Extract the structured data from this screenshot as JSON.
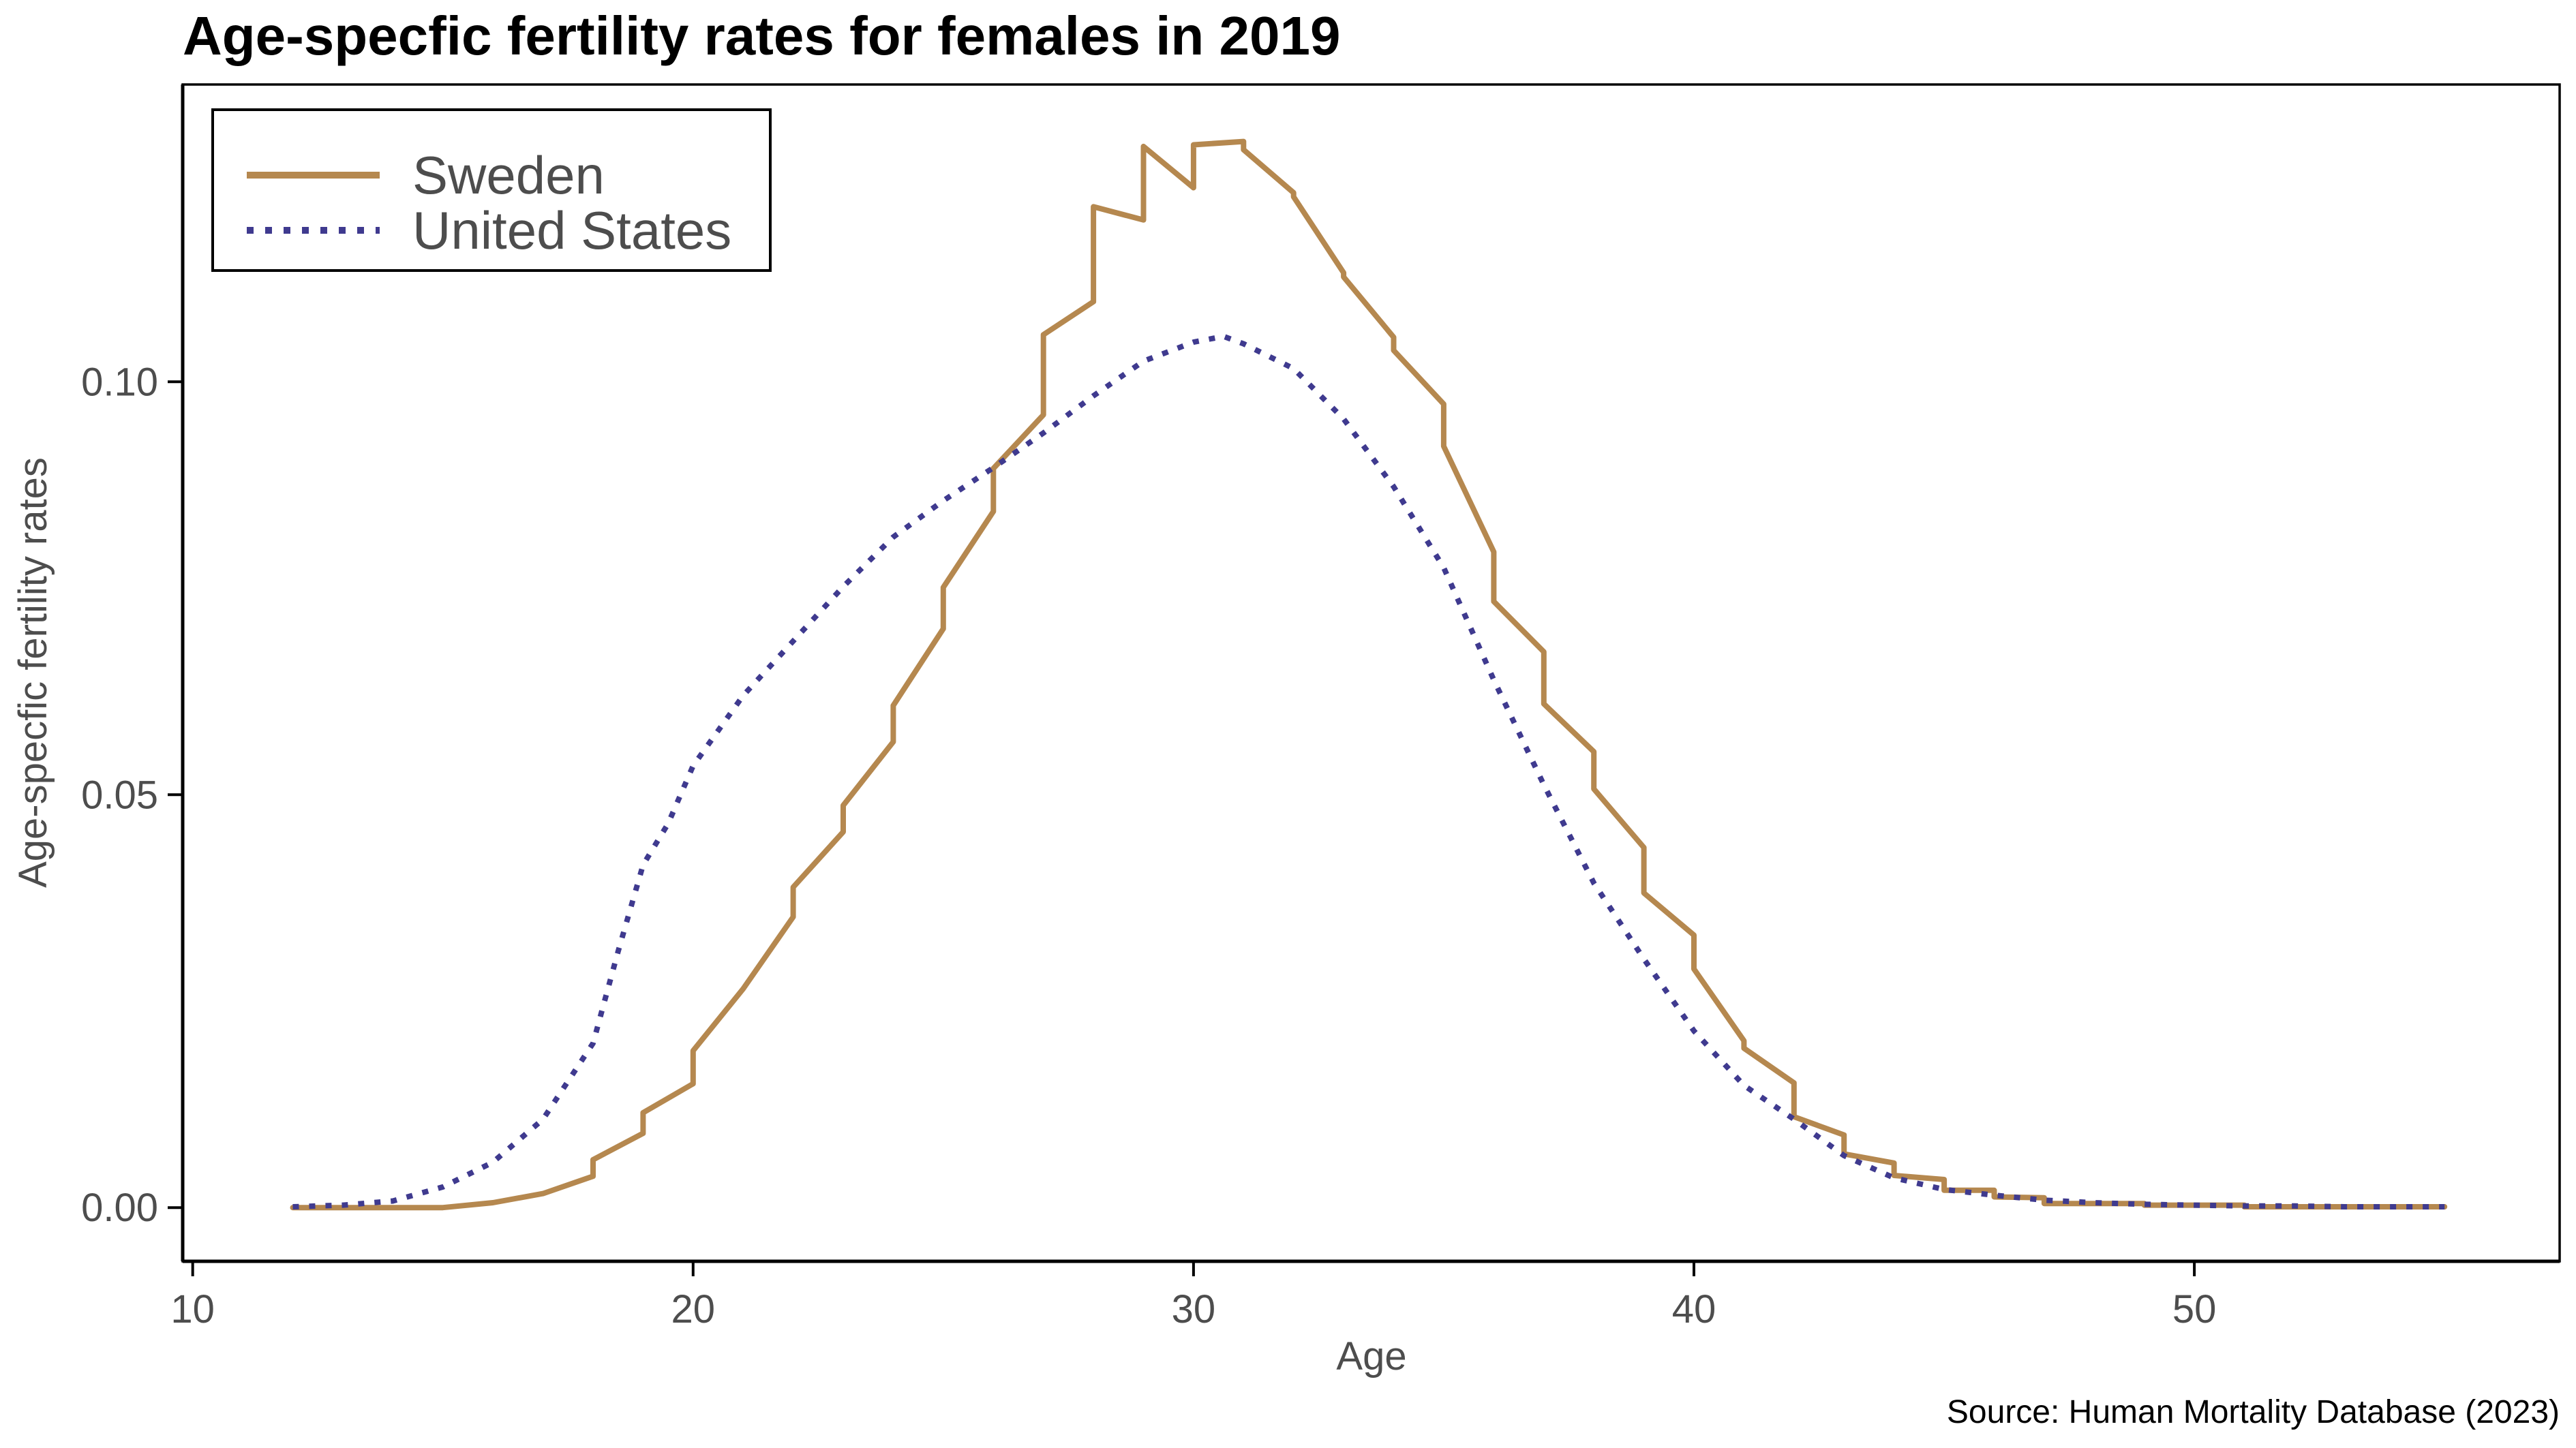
{
  "chart_data": {
    "type": "line",
    "title": "Age-specfic fertility rates for females in 2019",
    "xlabel": "Age",
    "ylabel": "Age-specfic fertility rates",
    "caption": "Source: Human Mortality Database (2023)",
    "xlim": [
      9.8,
      57.3
    ],
    "ylim": [
      -0.0065,
      0.136
    ],
    "x_ticks": [
      10,
      20,
      30,
      40,
      50
    ],
    "x_tick_labels": [
      "10",
      "20",
      "30",
      "40",
      "50"
    ],
    "y_ticks": [
      0.0,
      0.05,
      0.1
    ],
    "y_tick_labels": [
      "0.00",
      "0.05",
      "0.10"
    ],
    "grid": false,
    "legend_position": "top-left",
    "series": [
      {
        "name": "Sweden",
        "color": "#b5884f",
        "style": "solid",
        "points": [
          [
            12,
            0.0
          ],
          [
            13,
            0.0
          ],
          [
            14,
            0.0
          ],
          [
            15,
            0.0
          ],
          [
            16,
            0.0006
          ],
          [
            17,
            0.0017
          ],
          [
            17,
            0.0017
          ],
          [
            18,
            0.0038
          ],
          [
            18,
            0.0058
          ],
          [
            19,
            0.009
          ],
          [
            19,
            0.0115
          ],
          [
            20,
            0.015
          ],
          [
            20,
            0.019
          ],
          [
            21,
            0.0265
          ],
          [
            22,
            0.0352
          ],
          [
            22,
            0.0388
          ],
          [
            23,
            0.0455
          ],
          [
            23,
            0.0487
          ],
          [
            24,
            0.0564
          ],
          [
            24,
            0.0608
          ],
          [
            25,
            0.0701
          ],
          [
            25,
            0.0751
          ],
          [
            26,
            0.0843
          ],
          [
            26,
            0.0895
          ],
          [
            27,
            0.096
          ],
          [
            27,
            0.1057
          ],
          [
            28,
            0.1097
          ],
          [
            28,
            0.1212
          ],
          [
            29,
            0.1196
          ],
          [
            29,
            0.1285
          ],
          [
            30,
            0.1235
          ],
          [
            30,
            0.1287
          ],
          [
            31,
            0.1291
          ],
          [
            31,
            0.1281
          ],
          [
            32,
            0.1229
          ],
          [
            32,
            0.1224
          ],
          [
            33,
            0.1132
          ],
          [
            33,
            0.1127
          ],
          [
            34,
            0.1054
          ],
          [
            34,
            0.1038
          ],
          [
            35,
            0.0973
          ],
          [
            35,
            0.0922
          ],
          [
            36,
            0.0794
          ],
          [
            36,
            0.0734
          ],
          [
            37,
            0.0673
          ],
          [
            37,
            0.061
          ],
          [
            38,
            0.0552
          ],
          [
            38,
            0.0507
          ],
          [
            39,
            0.0436
          ],
          [
            39,
            0.0381
          ],
          [
            40,
            0.033
          ],
          [
            40,
            0.0289
          ],
          [
            41,
            0.0202
          ],
          [
            41,
            0.0193
          ],
          [
            42,
            0.0151
          ],
          [
            42,
            0.011
          ],
          [
            43,
            0.0088
          ],
          [
            43,
            0.0065
          ],
          [
            44,
            0.0054
          ],
          [
            44,
            0.0039
          ],
          [
            45,
            0.0034
          ],
          [
            45,
            0.0021
          ],
          [
            46,
            0.0021
          ],
          [
            46,
            0.0013
          ],
          [
            47,
            0.0012
          ],
          [
            47,
            0.0005
          ],
          [
            48,
            0.0005
          ],
          [
            49,
            0.0005
          ],
          [
            49,
            0.0003
          ],
          [
            50,
            0.0003
          ],
          [
            51,
            0.0003
          ],
          [
            51,
            0.0001
          ],
          [
            52,
            0.0001
          ],
          [
            53,
            0.0001
          ],
          [
            54,
            0.0001
          ],
          [
            55,
            0.0001
          ]
        ]
      },
      {
        "name": "United States",
        "color": "#3f3a8f",
        "style": "dotted",
        "points": [
          [
            12,
            0.0001
          ],
          [
            13,
            0.0003
          ],
          [
            14,
            0.0008
          ],
          [
            15,
            0.0025
          ],
          [
            16,
            0.0055
          ],
          [
            17,
            0.0107
          ],
          [
            18,
            0.0199
          ],
          [
            18.5,
            0.031
          ],
          [
            19,
            0.0415
          ],
          [
            19.5,
            0.0465
          ],
          [
            20,
            0.0535
          ],
          [
            21,
            0.062
          ],
          [
            22,
            0.0686
          ],
          [
            23,
            0.0752
          ],
          [
            24,
            0.0812
          ],
          [
            25,
            0.0856
          ],
          [
            26,
            0.0896
          ],
          [
            27,
            0.0938
          ],
          [
            28,
            0.0983
          ],
          [
            29,
            0.1025
          ],
          [
            30,
            0.1048
          ],
          [
            30.6,
            0.1055
          ],
          [
            31,
            0.1046
          ],
          [
            32,
            0.1016
          ],
          [
            33,
            0.0955
          ],
          [
            34,
            0.0873
          ],
          [
            35,
            0.0775
          ],
          [
            36,
            0.0639
          ],
          [
            37,
            0.0512
          ],
          [
            38,
            0.0393
          ],
          [
            39,
            0.0301
          ],
          [
            40,
            0.0214
          ],
          [
            41,
            0.0148
          ],
          [
            42,
            0.0107
          ],
          [
            43,
            0.0063
          ],
          [
            44,
            0.0036
          ],
          [
            45,
            0.0022
          ],
          [
            46,
            0.0015
          ],
          [
            47,
            0.0009
          ],
          [
            48,
            0.0006
          ],
          [
            49,
            0.0004
          ],
          [
            50,
            0.0003
          ],
          [
            51,
            0.0002
          ],
          [
            52,
            0.0002
          ],
          [
            53,
            0.0001
          ],
          [
            54,
            0.0001
          ],
          [
            55,
            0.0001
          ]
        ]
      }
    ]
  }
}
